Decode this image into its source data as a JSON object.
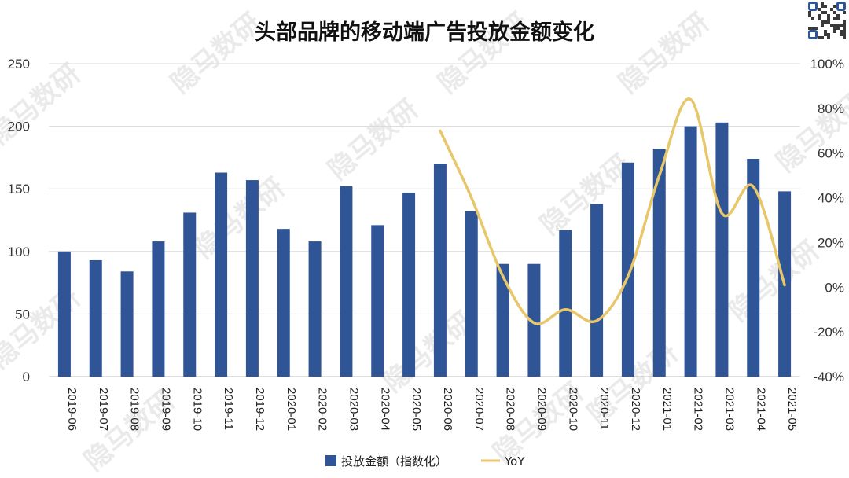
{
  "chart_data": {
    "type": "bar+line",
    "title": "头部品牌的移动端广告投放金额变化",
    "categories": [
      "2019-06",
      "2019-07",
      "2019-08",
      "2019-09",
      "2019-10",
      "2019-11",
      "2019-12",
      "2020-01",
      "2020-02",
      "2020-03",
      "2020-04",
      "2020-05",
      "2020-06",
      "2020-07",
      "2020-08",
      "2020-09",
      "2020-10",
      "2020-11",
      "2020-12",
      "2021-01",
      "2021-02",
      "2021-03",
      "2021-04",
      "2021-05"
    ],
    "series": [
      {
        "name": "投放金额（指数化）",
        "type": "bar",
        "axis": "left",
        "color": "#2f5596",
        "values": [
          100,
          93,
          84,
          108,
          131,
          163,
          157,
          118,
          108,
          152,
          121,
          147,
          170,
          132,
          90,
          90,
          117,
          138,
          171,
          182,
          200,
          203,
          174,
          148
        ]
      },
      {
        "name": "YoY",
        "type": "line",
        "axis": "right",
        "color": "#e8c66a",
        "values": [
          null,
          null,
          null,
          null,
          null,
          null,
          null,
          null,
          null,
          null,
          null,
          null,
          0.7,
          0.4,
          0.05,
          -0.16,
          -0.1,
          -0.15,
          0.05,
          0.5,
          0.84,
          0.33,
          0.45,
          0.01
        ]
      }
    ],
    "ylim_left": [
      0,
      250
    ],
    "yticks_left": [
      "0",
      "50",
      "100",
      "150",
      "200",
      "250"
    ],
    "ylim_right": [
      -0.4,
      1.0
    ],
    "yticks_right": [
      "-40%",
      "-20%",
      "0%",
      "20%",
      "40%",
      "60%",
      "80%",
      "100%"
    ],
    "grid": "horizontal",
    "legend": "bottom"
  },
  "watermark": "隐马数研",
  "qr_icon": "qr-code-icon"
}
